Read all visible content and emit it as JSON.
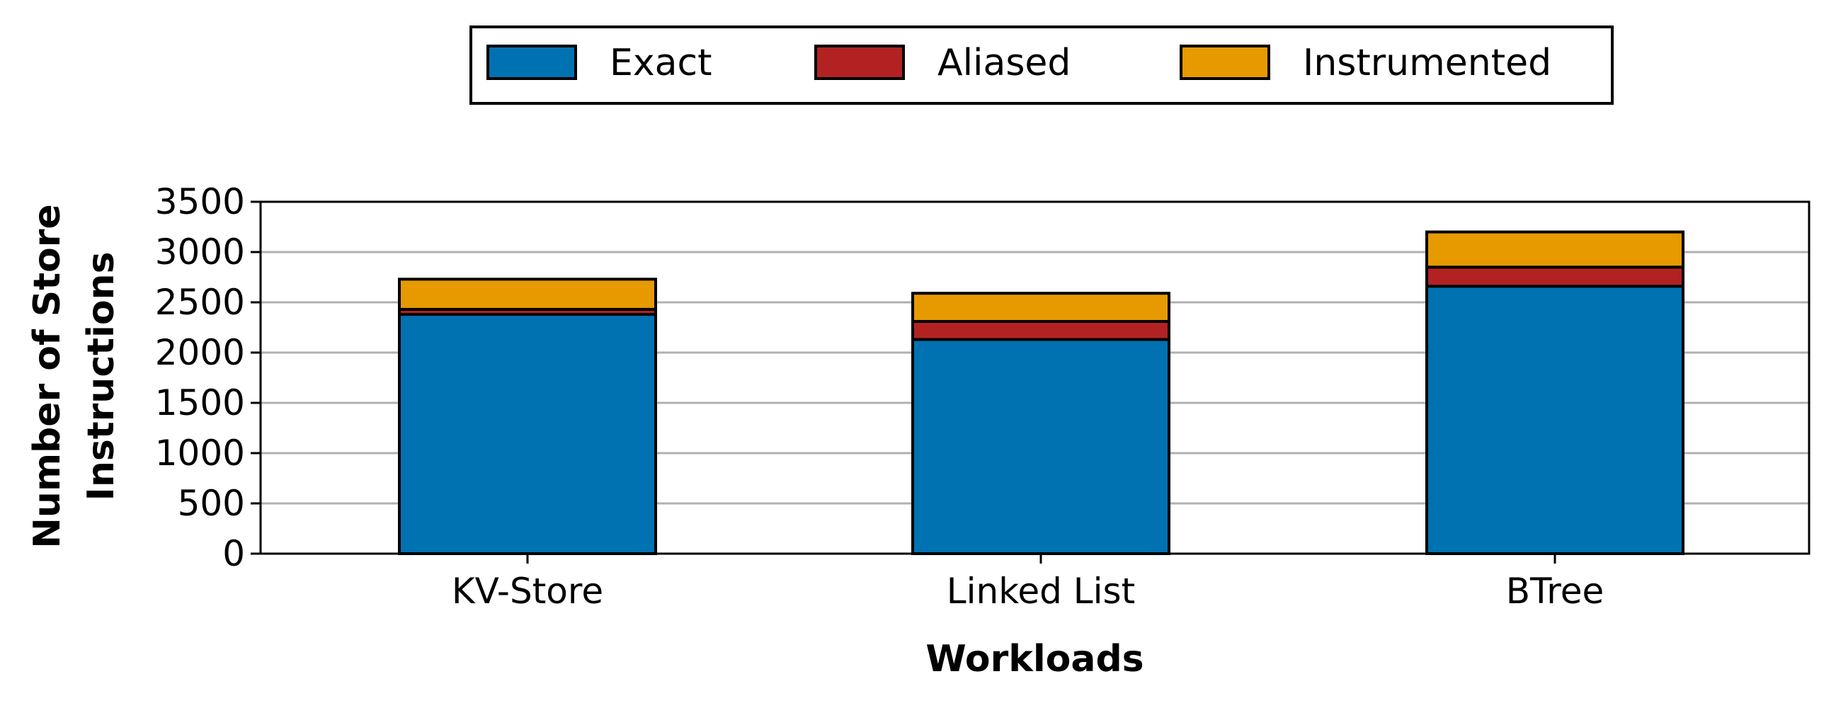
{
  "chart_data": {
    "type": "bar",
    "stacked": true,
    "title": "",
    "xlabel": "Workloads",
    "ylabel_lines": [
      "Number of Store",
      "Instructions"
    ],
    "categories": [
      "KV-Store",
      "Linked List",
      "BTree"
    ],
    "series": [
      {
        "name": "Exact",
        "color": "#0072b2",
        "values": [
          2380,
          2130,
          2660
        ]
      },
      {
        "name": "Aliased",
        "color": "#b22222",
        "values": [
          50,
          180,
          190
        ]
      },
      {
        "name": "Instrumented",
        "color": "#e69a00",
        "values": [
          300,
          280,
          350
        ]
      }
    ],
    "ylim": [
      0,
      3500
    ],
    "yticks": [
      0,
      500,
      1000,
      1500,
      2000,
      2500,
      3000,
      3500
    ],
    "grid": "y",
    "legend_position": "top-center"
  }
}
